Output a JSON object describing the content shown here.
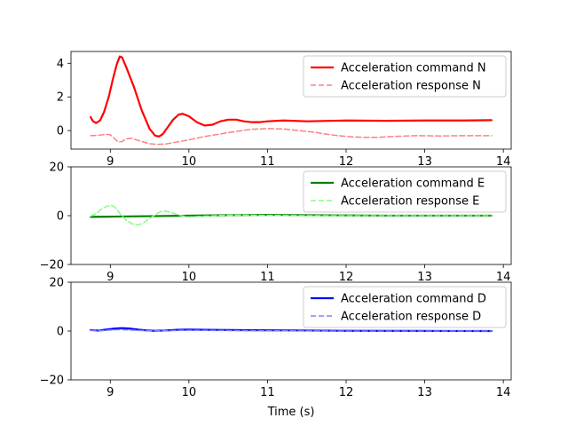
{
  "chart_data": [
    {
      "type": "line",
      "panel": "N",
      "xlabel": "",
      "ylabel": "",
      "xlim": [
        8.5,
        14.1
      ],
      "ylim": [
        -1.1,
        4.7
      ],
      "xticks": [
        "9",
        "10",
        "11",
        "12",
        "13",
        "14"
      ],
      "yticks": [
        "0",
        "2",
        "4"
      ],
      "legend": "top-right",
      "series": [
        {
          "name": "Acceleration command N",
          "color": "#ff0000",
          "style": "solid",
          "points": [
            [
              8.75,
              0.8
            ],
            [
              8.78,
              0.55
            ],
            [
              8.82,
              0.45
            ],
            [
              8.87,
              0.6
            ],
            [
              8.92,
              1.1
            ],
            [
              8.98,
              2.0
            ],
            [
              9.03,
              3.0
            ],
            [
              9.08,
              3.9
            ],
            [
              9.12,
              4.4
            ],
            [
              9.15,
              4.35
            ],
            [
              9.2,
              3.8
            ],
            [
              9.3,
              2.6
            ],
            [
              9.4,
              1.2
            ],
            [
              9.5,
              0.1
            ],
            [
              9.57,
              -0.3
            ],
            [
              9.62,
              -0.35
            ],
            [
              9.67,
              -0.2
            ],
            [
              9.73,
              0.2
            ],
            [
              9.8,
              0.65
            ],
            [
              9.87,
              0.95
            ],
            [
              9.92,
              1.0
            ],
            [
              10.0,
              0.85
            ],
            [
              10.1,
              0.5
            ],
            [
              10.2,
              0.3
            ],
            [
              10.3,
              0.35
            ],
            [
              10.4,
              0.55
            ],
            [
              10.5,
              0.65
            ],
            [
              10.6,
              0.65
            ],
            [
              10.7,
              0.55
            ],
            [
              10.8,
              0.5
            ],
            [
              10.9,
              0.5
            ],
            [
              11.0,
              0.55
            ],
            [
              11.2,
              0.6
            ],
            [
              11.5,
              0.55
            ],
            [
              12.0,
              0.6
            ],
            [
              12.5,
              0.58
            ],
            [
              13.0,
              0.6
            ],
            [
              13.5,
              0.6
            ],
            [
              13.85,
              0.62
            ]
          ]
        },
        {
          "name": "Acceleration response N",
          "color": "#ff8080",
          "style": "dashed",
          "points": [
            [
              8.75,
              -0.3
            ],
            [
              8.85,
              -0.28
            ],
            [
              8.95,
              -0.22
            ],
            [
              9.0,
              -0.25
            ],
            [
              9.05,
              -0.45
            ],
            [
              9.1,
              -0.68
            ],
            [
              9.15,
              -0.65
            ],
            [
              9.2,
              -0.5
            ],
            [
              9.27,
              -0.45
            ],
            [
              9.33,
              -0.55
            ],
            [
              9.4,
              -0.65
            ],
            [
              9.5,
              -0.78
            ],
            [
              9.6,
              -0.82
            ],
            [
              9.7,
              -0.8
            ],
            [
              9.8,
              -0.72
            ],
            [
              10.0,
              -0.55
            ],
            [
              10.2,
              -0.35
            ],
            [
              10.4,
              -0.2
            ],
            [
              10.6,
              -0.05
            ],
            [
              10.8,
              0.08
            ],
            [
              11.0,
              0.12
            ],
            [
              11.2,
              0.1
            ],
            [
              11.4,
              0.0
            ],
            [
              11.6,
              -0.1
            ],
            [
              11.8,
              -0.25
            ],
            [
              12.0,
              -0.35
            ],
            [
              12.2,
              -0.4
            ],
            [
              12.4,
              -0.4
            ],
            [
              12.6,
              -0.35
            ],
            [
              12.9,
              -0.3
            ],
            [
              13.2,
              -0.32
            ],
            [
              13.5,
              -0.3
            ],
            [
              13.85,
              -0.3
            ]
          ]
        }
      ]
    },
    {
      "type": "line",
      "panel": "E",
      "xlabel": "",
      "ylabel": "",
      "xlim": [
        8.5,
        14.1
      ],
      "ylim": [
        -20,
        20
      ],
      "xticks": [
        "9",
        "10",
        "11",
        "12",
        "13",
        "14"
      ],
      "yticks": [
        "−20",
        "0",
        "20"
      ],
      "legend": "top-right",
      "series": [
        {
          "name": "Acceleration command E",
          "color": "#008000",
          "style": "solid",
          "points": [
            [
              8.75,
              -0.5
            ],
            [
              9.0,
              -0.4
            ],
            [
              9.5,
              -0.2
            ],
            [
              10.0,
              0.0
            ],
            [
              10.5,
              0.2
            ],
            [
              11.0,
              0.3
            ],
            [
              11.5,
              0.2
            ],
            [
              12.0,
              0.1
            ],
            [
              12.5,
              0.0
            ],
            [
              13.0,
              0.0
            ],
            [
              13.85,
              0.0
            ]
          ]
        },
        {
          "name": "Acceleration response E",
          "color": "#80ff80",
          "style": "dashed",
          "points": [
            [
              8.75,
              -0.2
            ],
            [
              8.82,
              0.8
            ],
            [
              8.88,
              2.5
            ],
            [
              8.95,
              3.8
            ],
            [
              9.02,
              4.2
            ],
            [
              9.08,
              2.8
            ],
            [
              9.13,
              0.5
            ],
            [
              9.2,
              -1.8
            ],
            [
              9.28,
              -3.4
            ],
            [
              9.35,
              -3.8
            ],
            [
              9.42,
              -3.0
            ],
            [
              9.5,
              -1.2
            ],
            [
              9.58,
              0.6
            ],
            [
              9.65,
              1.8
            ],
            [
              9.72,
              1.8
            ],
            [
              9.8,
              1.0
            ],
            [
              9.9,
              0.0
            ],
            [
              10.0,
              -0.5
            ],
            [
              10.2,
              -0.2
            ],
            [
              10.4,
              0.1
            ],
            [
              10.6,
              0.2
            ],
            [
              11.0,
              0.1
            ],
            [
              11.5,
              0.0
            ],
            [
              12.0,
              0.0
            ],
            [
              13.0,
              0.0
            ],
            [
              13.85,
              0.0
            ]
          ]
        }
      ]
    },
    {
      "type": "line",
      "panel": "D",
      "xlabel": "Time (s)",
      "ylabel": "",
      "xlim": [
        8.5,
        14.1
      ],
      "ylim": [
        -20,
        20
      ],
      "xticks": [
        "9",
        "10",
        "11",
        "12",
        "13",
        "14"
      ],
      "yticks": [
        "−20",
        "0",
        "20"
      ],
      "legend": "top-right",
      "series": [
        {
          "name": "Acceleration command D",
          "color": "#0000ff",
          "style": "solid",
          "points": [
            [
              8.75,
              0.4
            ],
            [
              8.85,
              0.2
            ],
            [
              8.95,
              0.6
            ],
            [
              9.05,
              1.0
            ],
            [
              9.15,
              1.2
            ],
            [
              9.25,
              1.0
            ],
            [
              9.35,
              0.6
            ],
            [
              9.45,
              0.3
            ],
            [
              9.55,
              0.1
            ],
            [
              9.7,
              0.2
            ],
            [
              9.85,
              0.5
            ],
            [
              10.0,
              0.6
            ],
            [
              10.2,
              0.5
            ],
            [
              10.5,
              0.4
            ],
            [
              11.0,
              0.3
            ],
            [
              11.5,
              0.2
            ],
            [
              12.0,
              0.1
            ],
            [
              13.0,
              0.05
            ],
            [
              13.85,
              0.0
            ]
          ]
        },
        {
          "name": "Acceleration response D",
          "color": "#8080ff",
          "style": "dashed",
          "points": [
            [
              8.75,
              0.3
            ],
            [
              8.9,
              0.2
            ],
            [
              9.0,
              0.4
            ],
            [
              9.1,
              0.6
            ],
            [
              9.2,
              0.5
            ],
            [
              9.35,
              0.3
            ],
            [
              9.5,
              0.1
            ],
            [
              9.7,
              0.1
            ],
            [
              9.9,
              0.3
            ],
            [
              10.1,
              0.3
            ],
            [
              10.5,
              0.2
            ],
            [
              11.0,
              0.1
            ],
            [
              11.5,
              0.05
            ],
            [
              12.0,
              0.0
            ],
            [
              13.0,
              0.0
            ],
            [
              13.85,
              0.0
            ]
          ]
        }
      ]
    }
  ]
}
